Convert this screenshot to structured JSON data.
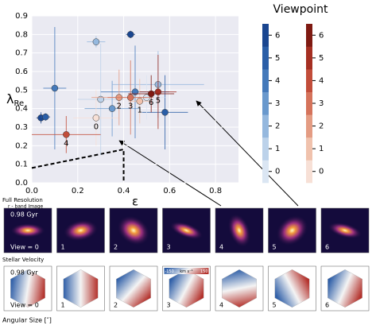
{
  "chart_data": {
    "type": "scatter",
    "xlabel": "ε",
    "ylabel": "λ",
    "ylabel_sub": "Re",
    "xlim": [
      0,
      0.9
    ],
    "ylim": [
      0,
      0.9
    ],
    "xticks": [
      {
        "value": 0,
        "label": "0.0"
      },
      0.2,
      0.4,
      0.6,
      0.8
    ],
    "yticks": [
      {
        "value": 0,
        "label": "0.0"
      },
      0.1,
      0.2,
      0.3,
      0.4,
      0.5,
      0.6,
      0.7,
      0.8,
      0.9
    ],
    "grid": true,
    "colorbar_title": "Viewpoint",
    "colorbars": [
      {
        "colors": [
          "#dbe6f3",
          "#bcd2ea",
          "#95b8de",
          "#6a99cd",
          "#4479ba",
          "#2a5ea7",
          "#1a4690"
        ],
        "ticks": [
          0,
          1,
          2,
          3,
          4,
          5,
          6
        ]
      },
      {
        "colors": [
          "#f7e0d6",
          "#f0c2ad",
          "#e49c83",
          "#d5735b",
          "#c24d3a",
          "#a52f22",
          "#7f1a12"
        ],
        "ticks": [
          0,
          1,
          2,
          3,
          4,
          5,
          6
        ]
      }
    ],
    "series": [
      {
        "colorbar": 0,
        "labels": false,
        "x": [
          0.04,
          0.06,
          0.1,
          0.28,
          0.43,
          0.3,
          0.35,
          0.45,
          0.55,
          0.58,
          0.5
        ],
        "y": [
          0.35,
          0.355,
          0.51,
          0.76,
          0.8,
          0.45,
          0.4,
          0.49,
          0.53,
          0.38,
          0.46
        ],
        "xerr": [
          0.02,
          0.02,
          0.05,
          0.04,
          0.02,
          0.1,
          0.12,
          0.15,
          0.2,
          0.1,
          0.08
        ],
        "yerr": [
          0.03,
          0.02,
          0.33,
          0.03,
          0.02,
          0.3,
          0.15,
          0.25,
          0.18,
          0.2,
          0.12
        ],
        "viewpoints": [
          6,
          5,
          4,
          2,
          6,
          1,
          3,
          4,
          2,
          5,
          0
        ]
      },
      {
        "colorbar": 1,
        "labels": true,
        "x": [
          0.28,
          0.47,
          0.38,
          0.43,
          0.15,
          0.55,
          0.52
        ],
        "y": [
          0.35,
          0.44,
          0.46,
          0.46,
          0.26,
          0.49,
          0.48
        ],
        "xerr": [
          0.1,
          0.05,
          0.12,
          0.1,
          0.15,
          0.08,
          0.1
        ],
        "yerr": [
          0.15,
          0.12,
          0.15,
          0.2,
          0.1,
          0.2,
          0.1
        ],
        "viewpoints": [
          0,
          1,
          2,
          3,
          4,
          5,
          6
        ]
      }
    ],
    "lines": [
      {
        "x": [
          0,
          0.4,
          0.4
        ],
        "y": [
          0.08,
          0.18,
          0
        ],
        "color": "#000000"
      }
    ]
  },
  "panels": {
    "row1": {
      "title": [
        "Full Resolution",
        "r - band Image"
      ],
      "age": "0.98 Gyr",
      "views": [
        "View = 0",
        "1",
        "2",
        "3",
        "4",
        "5",
        "6"
      ]
    },
    "row2": {
      "title": "Stellar Velocity",
      "age": "0.98 Gyr",
      "views": [
        "View = 0",
        "1",
        "2",
        "3",
        "4",
        "5",
        "6"
      ],
      "scale": {
        "min": "-150",
        "unit": "km s⁻¹",
        "max": "150"
      },
      "xlabel": "Angular Size [″]"
    }
  }
}
